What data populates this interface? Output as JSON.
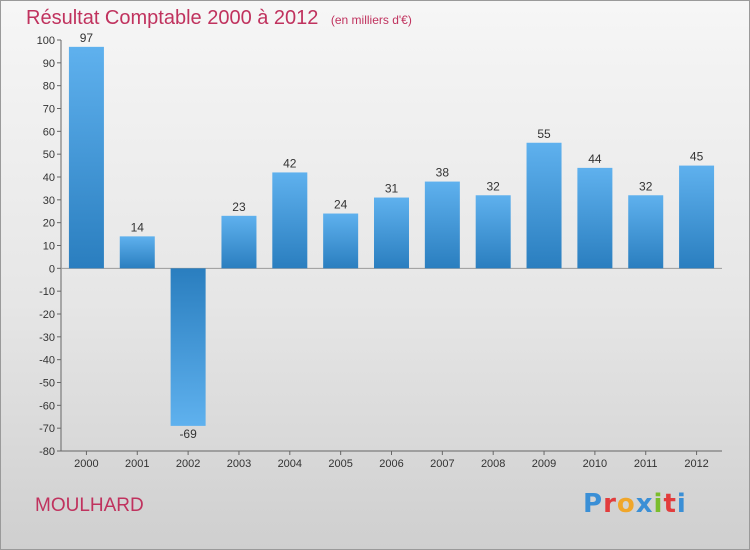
{
  "title": "Résultat Comptable 2000 à 2012",
  "subtitle": "(en milliers d'€)",
  "commune": "MOULHARD",
  "logo": {
    "text": "Proxiti",
    "letters": [
      "P",
      "r",
      "o",
      "x",
      "i",
      "t",
      "i"
    ],
    "colors": [
      "#3a8fd6",
      "#e23c3c",
      "#f0a62a",
      "#3a8fd6",
      "#7bbd2c",
      "#e23c3c",
      "#3a8fd6"
    ]
  },
  "colors": {
    "accent": "#c0325e",
    "bar_light": "#5fb1ee",
    "bar_dark": "#2a7ebf"
  },
  "chart_data": {
    "type": "bar",
    "title": "Résultat Comptable 2000 à 2012",
    "xlabel": "",
    "ylabel": "",
    "categories": [
      "2000",
      "2001",
      "2002",
      "2003",
      "2004",
      "2005",
      "2006",
      "2007",
      "2008",
      "2009",
      "2010",
      "2011",
      "2012"
    ],
    "values": [
      97,
      14,
      -69,
      23,
      42,
      24,
      31,
      38,
      32,
      55,
      44,
      32,
      45
    ],
    "ylim": [
      -80,
      100
    ],
    "yticks": [
      100,
      90,
      80,
      70,
      60,
      50,
      40,
      30,
      20,
      10,
      0,
      -10,
      -20,
      -30,
      -40,
      -50,
      -60,
      -70,
      -80
    ],
    "grid": false,
    "legend": "none"
  }
}
